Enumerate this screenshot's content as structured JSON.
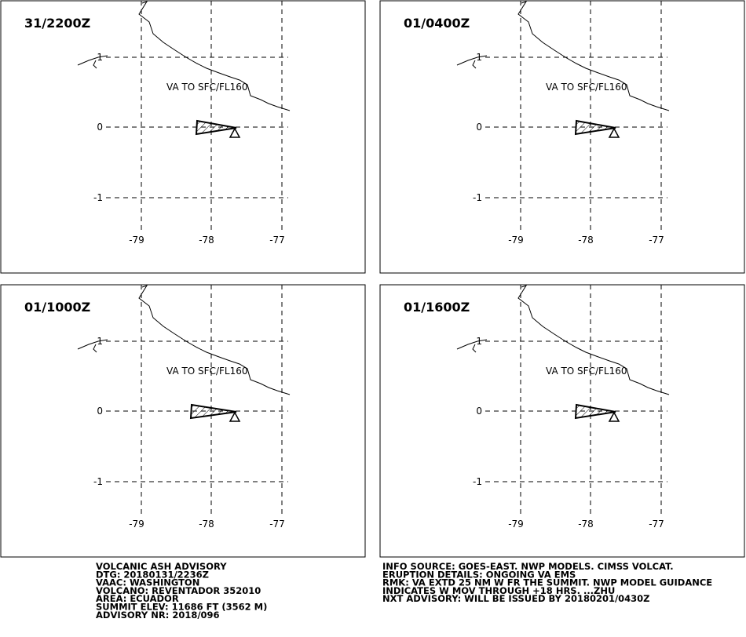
{
  "panels": [
    {
      "time": "31/2200Z",
      "annotation": "VA TO SFC/FL160",
      "lat_labels": [
        "1",
        "0",
        "-1"
      ],
      "lon_labels": [
        "-79",
        "-78",
        "-77"
      ]
    },
    {
      "time": "01/0400Z",
      "annotation": "VA TO SFC/FL160",
      "lat_labels": [
        "1",
        "0",
        "-1"
      ],
      "lon_labels": [
        "-79",
        "-78",
        "-77"
      ]
    },
    {
      "time": "01/1000Z",
      "annotation": "VA TO SFC/FL160",
      "lat_labels": [
        "1",
        "0",
        "-1"
      ],
      "lon_labels": [
        "-79",
        "-78",
        "-77"
      ]
    },
    {
      "time": "01/1600Z",
      "annotation": "VA TO SFC/FL160",
      "lat_labels": [
        "1",
        "0",
        "-1"
      ],
      "lon_labels": [
        "-79",
        "-78",
        "-77"
      ]
    }
  ],
  "advisory": {
    "left": [
      "VOLCANIC ASH ADVISORY",
      "DTG: 20180131/2236Z",
      "VAAC: WASHINGTON",
      "VOLCANO: REVENTADOR 352010",
      "AREA: ECUADOR",
      "SUMMIT ELEV: 11686 FT (3562 M)",
      "ADVISORY NR: 2018/096"
    ],
    "right": [
      "INFO SOURCE: GOES-EAST. NWP MODELS. CIMSS VOLCAT.",
      "ERUPTION DETAILS: ONGOING VA EMS",
      "RMK: VA EXTD 25 NM W FR THE SUMMIT. NWP MODEL GUIDANCE",
      "INDICATES W MOV THROUGH +18 HRS. ...ZHU",
      "NXT ADVISORY: WILL BE ISSUED BY 20180201/0430Z"
    ]
  }
}
